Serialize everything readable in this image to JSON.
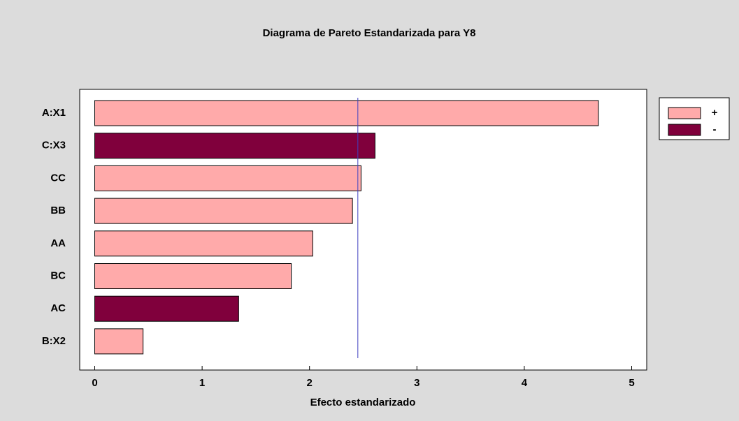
{
  "chart_data": {
    "type": "pareto",
    "title": "Diagrama de Pareto Estandarizada para Y8",
    "x_label": "Efecto estandarizado",
    "categories": [
      "A:X1",
      "C:X3",
      "CC",
      "BB",
      "AA",
      "BC",
      "AC",
      "B:X2"
    ],
    "series": [
      {
        "name": "+",
        "color": "#ffaaaa",
        "values": [
          4.69,
          null,
          2.48,
          2.4,
          2.03,
          1.83,
          null,
          0.45
        ]
      },
      {
        "name": "-",
        "color": "#80003c",
        "values": [
          null,
          2.61,
          null,
          null,
          null,
          null,
          1.34,
          null
        ]
      }
    ],
    "reference_line": 2.45,
    "reference_color": "#4040c0",
    "xlim": [
      -0.14,
      5.14
    ],
    "xticks": [
      0,
      1,
      2,
      3,
      4,
      5
    ]
  }
}
